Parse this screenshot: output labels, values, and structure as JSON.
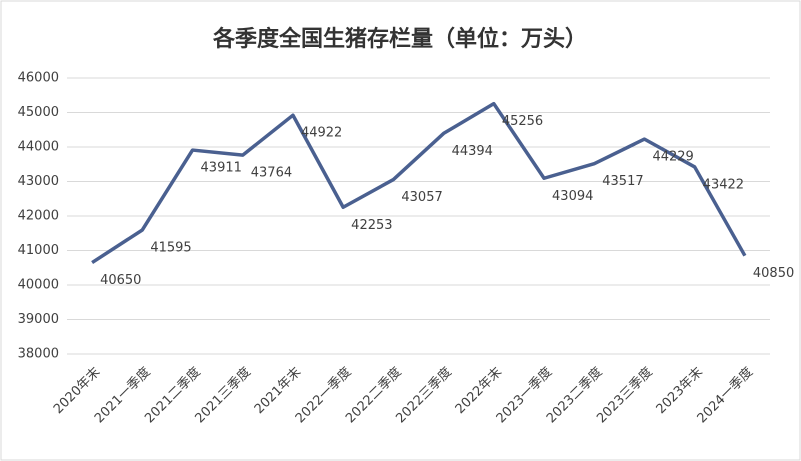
{
  "chart_data": {
    "type": "line",
    "title": "各季度全国生猪存栏量（单位：万头）",
    "categories": [
      "2020年末",
      "2021一季度",
      "2021二季度",
      "2021三季度",
      "2021年末",
      "2022一季度",
      "2022二季度",
      "2022三季度",
      "2022年末",
      "2023一季度",
      "2023二季度",
      "2023三季度",
      "2023年末",
      "2024一季度"
    ],
    "values": [
      40650,
      41595,
      43911,
      43764,
      44922,
      42253,
      43057,
      44394,
      45256,
      43094,
      43517,
      44229,
      43422,
      40850
    ],
    "color": "#4a6090",
    "ylim": [
      38000,
      46000
    ],
    "yticks": [
      38000,
      39000,
      40000,
      41000,
      42000,
      43000,
      44000,
      45000,
      46000
    ],
    "grid": true
  }
}
